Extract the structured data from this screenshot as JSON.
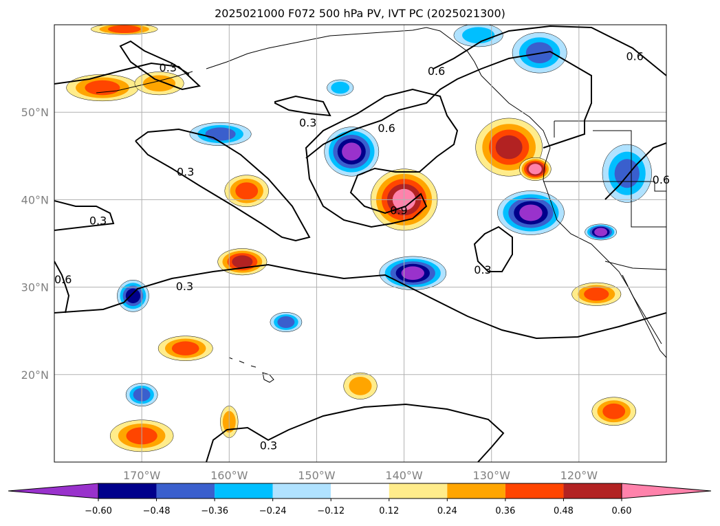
{
  "title": "2025021000 F072 500 hPa PV, IVT PC (2025021300)",
  "map": {
    "lon_range": [
      -180,
      -110
    ],
    "lat_range": [
      10,
      60
    ],
    "lat_labels": [
      {
        "lat": 50,
        "text": "50°N"
      },
      {
        "lat": 40,
        "text": "40°N"
      },
      {
        "lat": 30,
        "text": "30°N"
      },
      {
        "lat": 20,
        "text": "20°N"
      }
    ],
    "lon_labels": [
      {
        "lon": -170,
        "text": "170°W"
      },
      {
        "lon": -160,
        "text": "160°W"
      },
      {
        "lon": -150,
        "text": "150°W"
      },
      {
        "lon": -140,
        "text": "140°W"
      },
      {
        "lon": -130,
        "text": "130°W"
      },
      {
        "lon": -120,
        "text": "120°W"
      }
    ]
  },
  "pv_contour_labels": [
    {
      "text": "0.3",
      "lon": -167,
      "lat": 55
    },
    {
      "text": "0.3",
      "lon": -151,
      "lat": 48.7
    },
    {
      "text": "0.6",
      "lon": -142,
      "lat": 48.1
    },
    {
      "text": "0.3",
      "lon": -165,
      "lat": 43.1
    },
    {
      "text": "0.3",
      "lon": -175,
      "lat": 37.5
    },
    {
      "text": "0.9",
      "lon": -140.6,
      "lat": 38.7
    },
    {
      "text": "0.3",
      "lon": -131,
      "lat": 31.9
    },
    {
      "text": "0.3",
      "lon": -165.1,
      "lat": 30.0
    },
    {
      "text": "0.6",
      "lon": -179,
      "lat": 30.8
    },
    {
      "text": "0.3",
      "lon": -155.5,
      "lat": 11.8
    },
    {
      "text": "0.6",
      "lon": -136.3,
      "lat": 54.6
    },
    {
      "text": "0.6",
      "lon": -113.6,
      "lat": 56.3
    },
    {
      "text": "0.6",
      "lon": -110.6,
      "lat": 42.2
    }
  ],
  "colorbar": {
    "colors": [
      "#9932cc",
      "#00008b",
      "#3a5fcd",
      "#00bfff",
      "#b0e2ff",
      "#ffffff",
      "#ffec8b",
      "#ffa500",
      "#ff4500",
      "#b22222",
      "#ff82ab",
      "#ff82ab"
    ],
    "tick_labels": [
      "−0.60",
      "−0.48",
      "−0.36",
      "−0.24",
      "−0.12",
      "0.12",
      "0.24",
      "0.36",
      "0.48",
      "0.60"
    ]
  },
  "ivt_pc_blobs": [
    {
      "lon": -174.5,
      "lat": 52.8,
      "rx": 3.8,
      "ry": 1.2,
      "level": 0.36
    },
    {
      "lon": -168,
      "lat": 53.3,
      "rx": 2.5,
      "ry": 1.0,
      "level": 0.3
    },
    {
      "lon": -161,
      "lat": 47.5,
      "rx": 3.2,
      "ry": 1.0,
      "level": -0.36
    },
    {
      "lon": -146,
      "lat": 45.5,
      "rx": 2.8,
      "ry": 2.5,
      "level": -0.6
    },
    {
      "lon": -158,
      "lat": 41,
      "rx": 2.2,
      "ry": 1.5,
      "level": 0.36
    },
    {
      "lon": -140,
      "lat": 40,
      "rx": 3.5,
      "ry": 3.2,
      "level": 0.6
    },
    {
      "lon": -128,
      "lat": 46,
      "rx": 3.5,
      "ry": 3.0,
      "level": 0.48
    },
    {
      "lon": -125,
      "lat": 43.5,
      "rx": 1.5,
      "ry": 1.0,
      "level": 0.6
    },
    {
      "lon": -125.5,
      "lat": 38.5,
      "rx": 3.5,
      "ry": 2.2,
      "level": -0.6
    },
    {
      "lon": -117.5,
      "lat": 36.3,
      "rx": 1.5,
      "ry": 0.6,
      "level": -0.6
    },
    {
      "lon": -114.5,
      "lat": 43,
      "rx": 2.5,
      "ry": 3.0,
      "level": -0.36
    },
    {
      "lon": -139,
      "lat": 31.6,
      "rx": 3.5,
      "ry": 1.6,
      "level": -0.6
    },
    {
      "lon": -158.5,
      "lat": 32.9,
      "rx": 2.5,
      "ry": 1.2,
      "level": 0.48
    },
    {
      "lon": -171,
      "lat": 29,
      "rx": 1.5,
      "ry": 1.5,
      "level": -0.48
    },
    {
      "lon": -165,
      "lat": 23,
      "rx": 2.8,
      "ry": 1.1,
      "level": 0.36
    },
    {
      "lon": -153.5,
      "lat": 26,
      "rx": 1.5,
      "ry": 0.8,
      "level": -0.36
    },
    {
      "lon": -170,
      "lat": 17.7,
      "rx": 1.5,
      "ry": 1.0,
      "level": -0.36
    },
    {
      "lon": -170,
      "lat": 13,
      "rx": 3.3,
      "ry": 1.5,
      "level": 0.36
    },
    {
      "lon": -145,
      "lat": 18.7,
      "rx": 1.6,
      "ry": 1.2,
      "level": 0.3
    },
    {
      "lon": -160,
      "lat": 14.6,
      "rx": 0.7,
      "ry": 1.5,
      "level": 0.24
    },
    {
      "lon": -118,
      "lat": 29.2,
      "rx": 2.5,
      "ry": 1.0,
      "level": 0.36
    },
    {
      "lon": -116,
      "lat": 15.8,
      "rx": 2.2,
      "ry": 1.3,
      "level": 0.36
    },
    {
      "lon": -124.5,
      "lat": 56.8,
      "rx": 2.8,
      "ry": 2.0,
      "level": -0.36
    },
    {
      "lon": -131.5,
      "lat": 58.8,
      "rx": 2.5,
      "ry": 1.0,
      "level": -0.24
    },
    {
      "lon": -172,
      "lat": 59.5,
      "rx": 3.5,
      "ry": 0.3,
      "level": 0.36
    },
    {
      "lon": -147.3,
      "lat": 52.8,
      "rx": 1.2,
      "ry": 0.6,
      "level": -0.24
    }
  ]
}
